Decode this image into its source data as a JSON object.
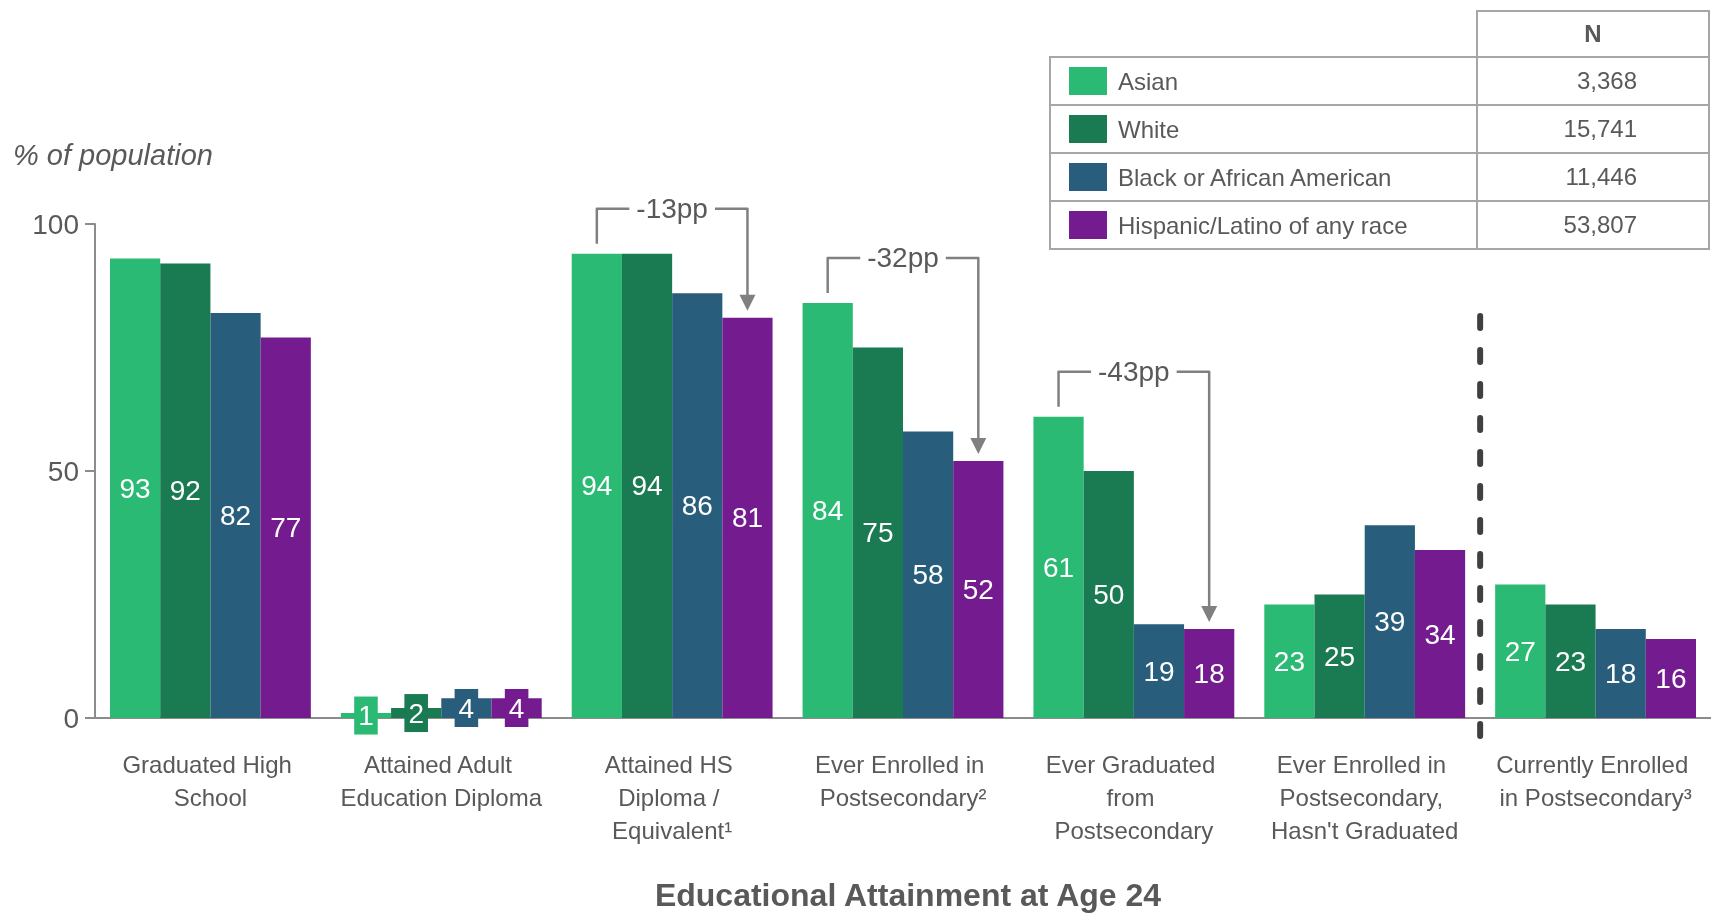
{
  "chart_data": {
    "type": "bar",
    "title": "Educational Attainment at Age 24",
    "ylabel": "% of population",
    "legend_title": "N",
    "categories": [
      "Graduated High School",
      "Attained Adult Education Diploma",
      "Attained HS Diploma / Equivalent¹",
      "Ever Enrolled in Postsecondary²",
      "Ever Graduated from Postsecondary",
      "Ever Enrolled in Postsecondary, Hasn't Graduated",
      "Currently Enrolled in Postsecondary³"
    ],
    "series": [
      {
        "name": "Asian",
        "color": "#2bba73",
        "values": [
          93,
          1,
          94,
          84,
          61,
          23,
          27
        ]
      },
      {
        "name": "White",
        "color": "#1a7a52",
        "values": [
          92,
          2,
          94,
          75,
          50,
          25,
          23
        ]
      },
      {
        "name": "Black or African American",
        "color": "#295d7c",
        "values": [
          82,
          4,
          86,
          58,
          19,
          39,
          18
        ]
      },
      {
        "name": "Hispanic/Latino of any race",
        "color": "#741c8f",
        "values": [
          77,
          4,
          81,
          52,
          18,
          34,
          16
        ]
      }
    ],
    "ylim": [
      0,
      100
    ],
    "yticks": [
      0,
      50,
      100
    ],
    "data_labels": true,
    "legend": "top right",
    "annotations": [
      "3,368",
      "15,741",
      "11,446",
      "53,807",
      "-13pp",
      "-32pp",
      "-43pp"
    ]
  }
}
